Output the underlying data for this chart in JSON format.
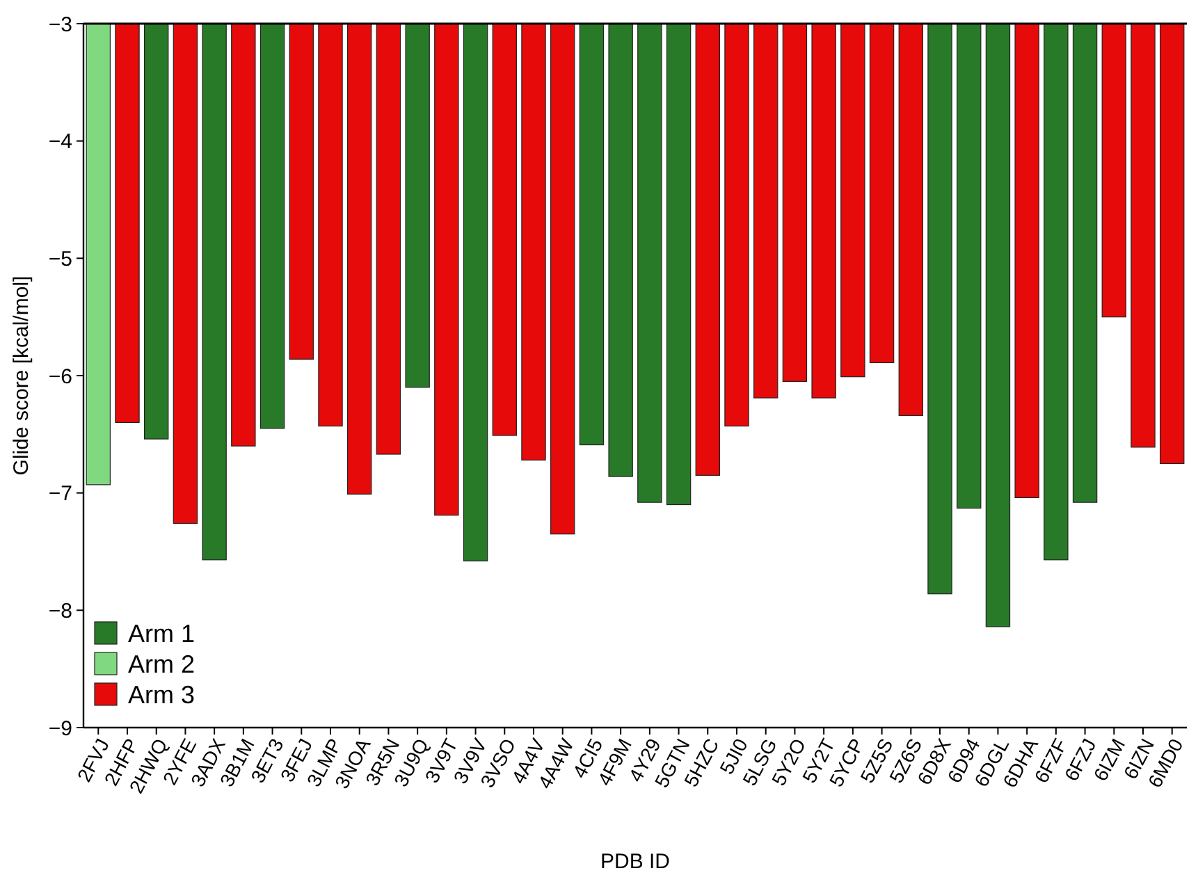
{
  "chart_data": {
    "type": "bar",
    "xlabel": "PDB ID",
    "ylabel": "Glide score [kcal/mol]",
    "categories": [
      "2FVJ",
      "2HFP",
      "2HWQ",
      "2YFE",
      "3ADX",
      "3B1M",
      "3ET3",
      "3FEJ",
      "3LMP",
      "3NOA",
      "3R5N",
      "3U9Q",
      "3V9T",
      "3V9V",
      "3VSO",
      "4A4V",
      "4A4W",
      "4CI5",
      "4F9M",
      "4Y29",
      "5GTN",
      "5HZC",
      "5JI0",
      "5LSG",
      "5Y2O",
      "5Y2T",
      "5YCP",
      "5Z5S",
      "5Z6S",
      "6D8X",
      "6D94",
      "6DGL",
      "6DHA",
      "6FZF",
      "6FZJ",
      "6IZM",
      "6IZN",
      "6MD0"
    ],
    "series": [
      {
        "name": "Arm 1",
        "color": "#287a28",
        "values": [
          null,
          null,
          -6.54,
          null,
          -7.57,
          null,
          -6.45,
          null,
          null,
          null,
          null,
          -6.1,
          null,
          -7.58,
          null,
          null,
          null,
          -6.59,
          -6.86,
          -7.08,
          -7.1,
          null,
          null,
          null,
          null,
          null,
          null,
          null,
          null,
          -7.86,
          -7.13,
          -8.14,
          null,
          -7.57,
          -7.08,
          null,
          null,
          null
        ]
      },
      {
        "name": "Arm 2",
        "color": "#80d880",
        "values": [
          -6.93,
          null,
          null,
          null,
          null,
          null,
          null,
          null,
          null,
          null,
          null,
          null,
          null,
          null,
          null,
          null,
          null,
          null,
          null,
          null,
          null,
          null,
          null,
          null,
          null,
          null,
          null,
          null,
          null,
          null,
          null,
          null,
          null,
          null,
          null,
          null,
          null,
          null
        ]
      },
      {
        "name": "Arm 3",
        "color": "#e60a0a",
        "values": [
          null,
          -6.4,
          null,
          -7.26,
          null,
          -6.6,
          null,
          -5.86,
          -6.43,
          -7.01,
          -6.67,
          null,
          -7.19,
          null,
          -6.51,
          -6.72,
          -7.35,
          null,
          null,
          null,
          null,
          -6.85,
          -6.43,
          -6.19,
          -6.05,
          -6.19,
          -6.01,
          -5.89,
          -6.34,
          null,
          null,
          null,
          -7.04,
          null,
          null,
          -5.5,
          -6.61,
          -6.75
        ]
      }
    ],
    "ylim": [
      -9,
      -3
    ],
    "yticks": [
      {
        "value": -3,
        "label": "−3"
      },
      {
        "value": -4,
        "label": "−4"
      },
      {
        "value": -5,
        "label": "−5"
      },
      {
        "value": -6,
        "label": "−6"
      },
      {
        "value": -7,
        "label": "−7"
      },
      {
        "value": -8,
        "label": "−8"
      },
      {
        "value": -9,
        "label": "−9"
      }
    ],
    "legend": "bottom left",
    "grid": false
  }
}
